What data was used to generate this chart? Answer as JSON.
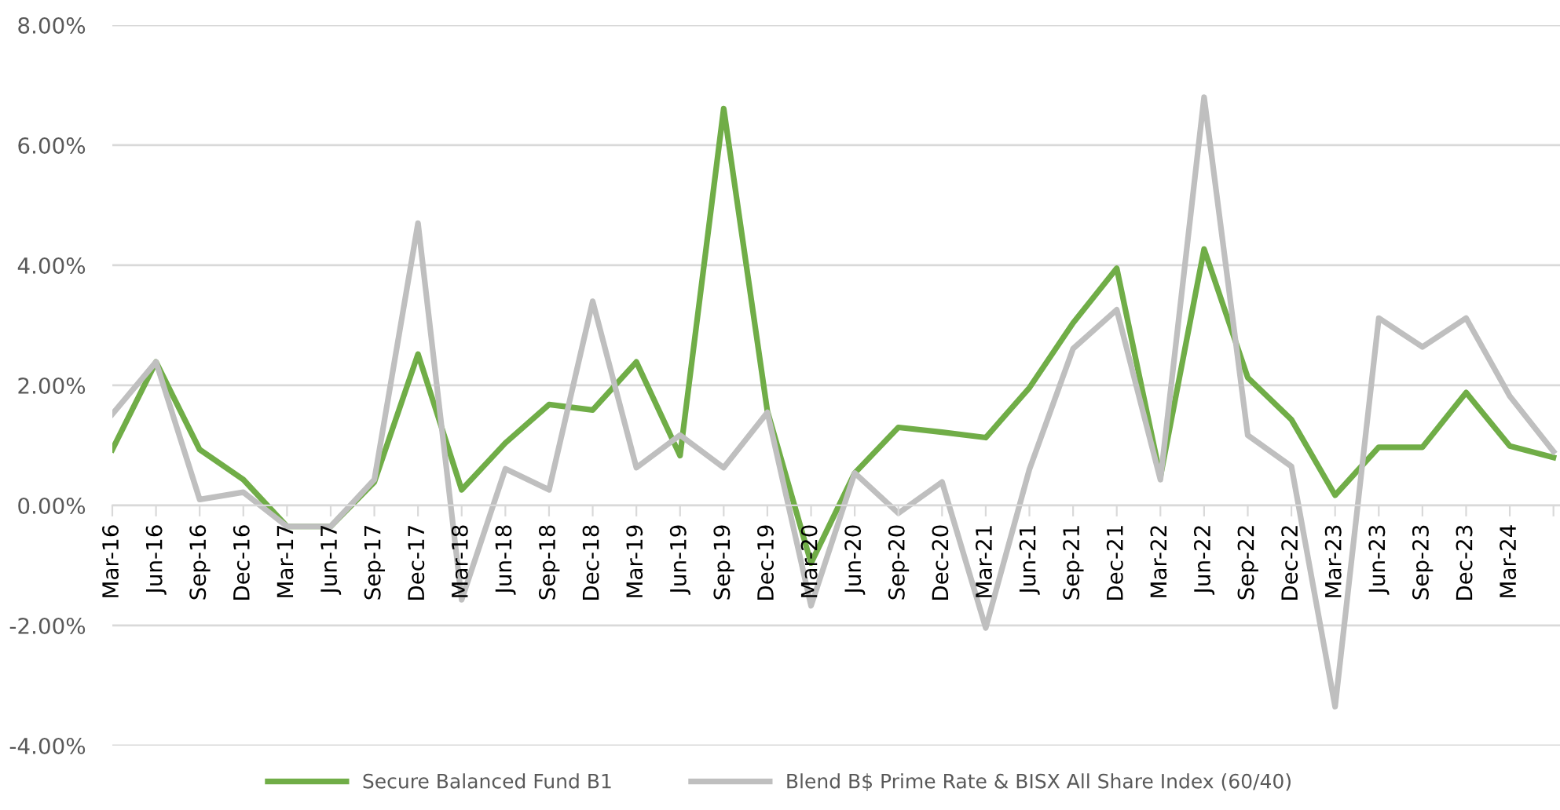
{
  "chart_data": {
    "type": "line",
    "categories": [
      "Mar-16",
      "Jun-16",
      "Sep-16",
      "Dec-16",
      "Mar-17",
      "Jun-17",
      "Sep-17",
      "Dec-17",
      "Mar-18",
      "Jun-18",
      "Sep-18",
      "Dec-18",
      "Mar-19",
      "Jun-19",
      "Sep-19",
      "Dec-19",
      "Mar-20",
      "Jun-20",
      "Sep-20",
      "Dec-20",
      "Mar-21",
      "Jun-21",
      "Sep-21",
      "Dec-21",
      "Mar-22",
      "Jun-22",
      "Sep-22",
      "Dec-22",
      "Mar-23",
      "Jun-23",
      "Sep-23",
      "Dec-23",
      "Mar-24",
      null
    ],
    "series": [
      {
        "name": "Secure Balanced Fund B1",
        "color": "#70ad47",
        "values": [
          0.93,
          2.39,
          0.93,
          0.43,
          -0.35,
          -0.35,
          0.39,
          2.52,
          0.26,
          1.04,
          1.68,
          1.59,
          2.39,
          0.83,
          6.61,
          1.57,
          -0.96,
          0.54,
          1.3,
          1.22,
          1.13,
          1.96,
          3.04,
          3.95,
          0.48,
          4.27,
          2.13,
          1.43,
          0.17,
          0.97,
          0.97,
          1.88,
          0.99,
          0.8
        ]
      },
      {
        "name": "Blend B$ Prime Rate & BISX All Share Index (60/40)",
        "color": "#bfbfbf",
        "values": [
          1.52,
          2.39,
          0.1,
          0.22,
          -0.35,
          -0.35,
          0.43,
          4.7,
          -1.57,
          0.61,
          0.26,
          3.4,
          0.63,
          1.17,
          0.63,
          1.55,
          -1.67,
          0.54,
          -0.13,
          0.39,
          -2.04,
          0.6,
          2.61,
          3.26,
          0.43,
          6.8,
          1.17,
          0.65,
          -3.35,
          3.12,
          2.64,
          3.12,
          1.82,
          0.9
        ]
      }
    ],
    "ylim": [
      -4,
      8
    ],
    "yticks": [
      {
        "value": -4,
        "label": "-4.00%"
      },
      {
        "value": -2,
        "label": "-2.00%"
      },
      {
        "value": 0,
        "label": "0.00%"
      },
      {
        "value": 2,
        "label": "2.00%"
      },
      {
        "value": 4,
        "label": "4.00%"
      },
      {
        "value": 6,
        "label": "6.00%"
      },
      {
        "value": 8,
        "label": "8.00%"
      }
    ],
    "grid": "y",
    "legend": "bottom",
    "marker": "none",
    "line_style": "solid"
  }
}
